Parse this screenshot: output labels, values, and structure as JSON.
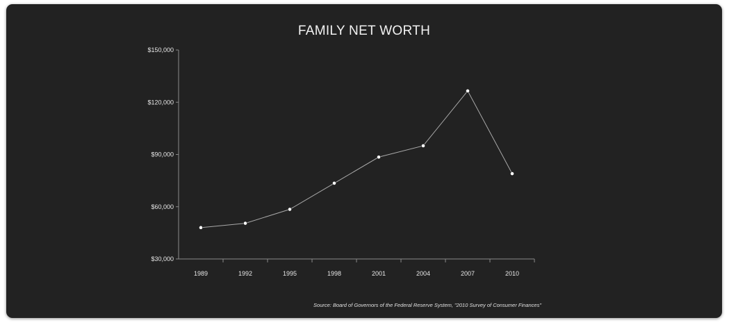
{
  "chart_data": {
    "type": "line",
    "title": "FAMILY NET WORTH",
    "xlabel": "",
    "ylabel": "",
    "categories": [
      "1989",
      "1992",
      "1995",
      "1998",
      "2001",
      "2004",
      "2007",
      "2010"
    ],
    "series": [
      {
        "values": [
          48000,
          50500,
          58500,
          73500,
          88500,
          95000,
          126500,
          79000
        ]
      }
    ],
    "ylim": [
      30000,
      150000
    ],
    "yticks": [
      30000,
      60000,
      90000,
      120000,
      150000
    ],
    "ytick_labels": [
      "$30,000",
      "$60,000",
      "$90,000",
      "$120,000",
      "$150,000"
    ],
    "grid": false,
    "legend": "none",
    "colors": {
      "background": "#222222",
      "line": "#a9a9a9",
      "points": "#ffffff",
      "text": "#e6e6e6"
    },
    "source": "Source: Board of Governors of the Federal Reserve System, \"2010 Survey of Consumer Finances\""
  }
}
